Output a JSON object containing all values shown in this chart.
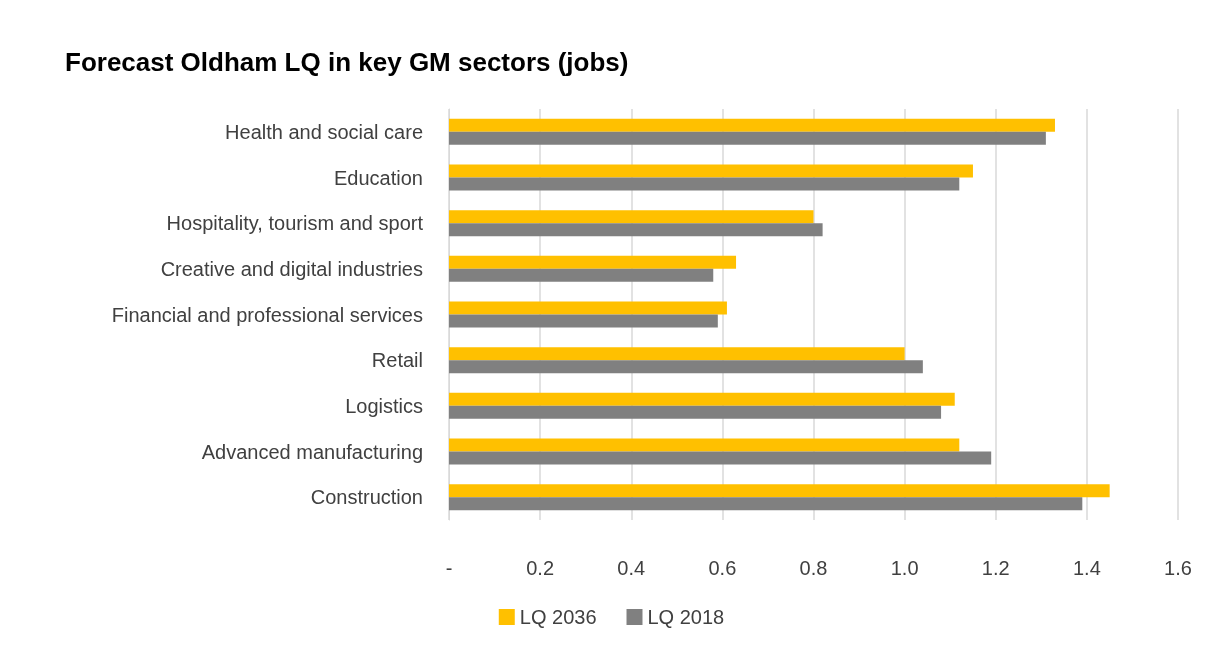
{
  "chart_data": {
    "type": "bar",
    "orientation": "horizontal",
    "title": "Forecast Oldham LQ in key GM sectors (jobs)",
    "categories": [
      "Health and social care",
      "Education",
      "Hospitality, tourism and sport",
      "Creative and digital industries",
      "Financial and professional services",
      "Retail",
      "Logistics",
      "Advanced manufacturing",
      "Construction"
    ],
    "series": [
      {
        "name": "LQ 2036",
        "color": "#ffc000",
        "values": [
          1.33,
          1.15,
          0.8,
          0.63,
          0.61,
          1.0,
          1.11,
          1.12,
          1.45
        ]
      },
      {
        "name": "LQ 2018",
        "color": "#808080",
        "values": [
          1.31,
          1.12,
          0.82,
          0.58,
          0.59,
          1.04,
          1.08,
          1.19,
          1.39
        ]
      }
    ],
    "xlim": [
      0,
      1.6
    ],
    "xticks": [
      {
        "value": 0,
        "label": "-"
      },
      0.2,
      0.4,
      0.6,
      0.8,
      {
        "value": 1,
        "label": "1.0"
      },
      1.2,
      1.4,
      1.6
    ],
    "grid": "x",
    "legend": "bottom"
  }
}
